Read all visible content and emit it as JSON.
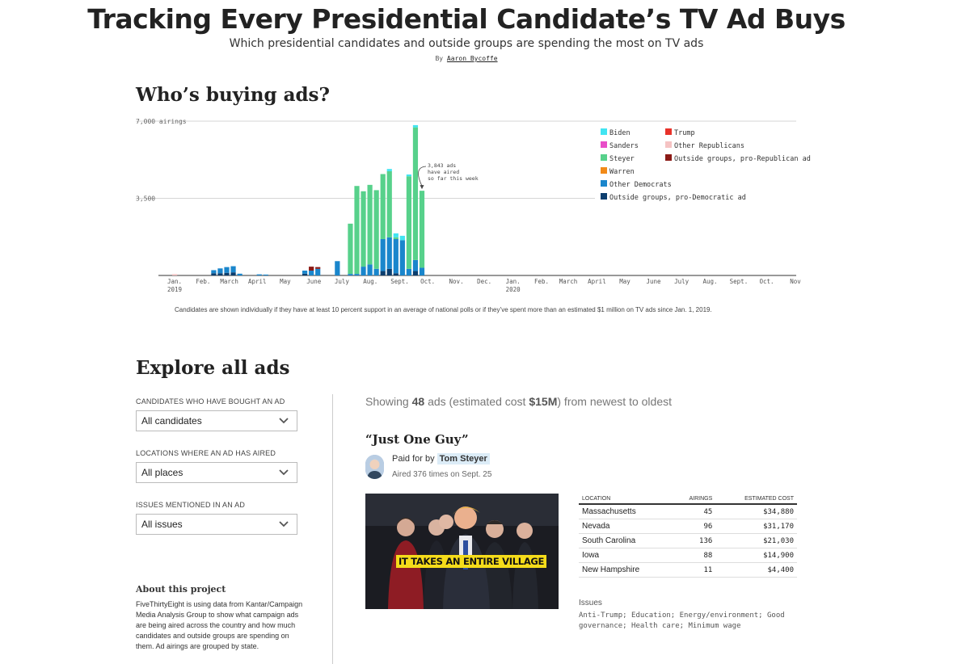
{
  "header": {
    "title": "Tracking Every Presidential Candidate’s TV Ad Buys",
    "subtitle": "Which presidential candidates and outside groups are spending the most on TV ads",
    "byline_prefix": "By",
    "author": "Aaron Bycoffe"
  },
  "chart_section": {
    "heading": "Who’s buying ads?",
    "footnote": "Candidates are shown individually if they have at least 10 percent support in an average of national polls or if they’ve spent more than an estimated $1 million on TV ads since Jan. 1, 2019."
  },
  "chart_data": {
    "type": "bar",
    "stacked": true,
    "title": "Who’s buying ads?",
    "ylabel": "airings",
    "ylim": [
      0,
      7000
    ],
    "yticks": [
      {
        "value": 3500,
        "label": "3,500"
      },
      {
        "value": 7000,
        "label": "7,000 airings"
      }
    ],
    "xticks": [
      {
        "label": "Jan.",
        "sub": "2019",
        "week": 0
      },
      {
        "label": "Feb.",
        "week": 4.4
      },
      {
        "label": "March",
        "week": 8.4
      },
      {
        "label": "April",
        "week": 12.7
      },
      {
        "label": "May",
        "week": 17
      },
      {
        "label": "June",
        "week": 21.4
      },
      {
        "label": "July",
        "week": 25.7
      },
      {
        "label": "Aug.",
        "week": 30.1
      },
      {
        "label": "Sept.",
        "week": 34.6
      },
      {
        "label": "Oct.",
        "week": 38.9
      },
      {
        "label": "Nov.",
        "week": 43.3
      },
      {
        "label": "Dec.",
        "week": 47.6
      },
      {
        "label": "Jan.",
        "sub": "2020",
        "week": 52
      },
      {
        "label": "Feb.",
        "week": 56.4
      },
      {
        "label": "March",
        "week": 60.5
      },
      {
        "label": "April",
        "week": 64.9
      },
      {
        "label": "May",
        "week": 69.2
      },
      {
        "label": "June",
        "week": 73.6
      },
      {
        "label": "July",
        "week": 77.9
      },
      {
        "label": "Aug.",
        "week": 82.3
      },
      {
        "label": "Sept.",
        "week": 86.7
      },
      {
        "label": "Oct.",
        "week": 91
      },
      {
        "label": "Nov",
        "week": 95.4
      }
    ],
    "x_range_weeks": [
      0,
      96
    ],
    "series": [
      {
        "name": "Biden",
        "color": "#41e4f2"
      },
      {
        "name": "Sanders",
        "color": "#e84ec8"
      },
      {
        "name": "Steyer",
        "color": "#57d18b"
      },
      {
        "name": "Warren",
        "color": "#f28a18"
      },
      {
        "name": "Other Democrats",
        "color": "#1a86cc"
      },
      {
        "name": "Outside groups, pro-Democratic ad",
        "color": "#0c3e6e"
      },
      {
        "name": "Trump",
        "color": "#e8322a"
      },
      {
        "name": "Other Republicans",
        "color": "#f5c3c3"
      },
      {
        "name": "Outside groups, pro-Republican ad",
        "color": "#8b1a16"
      }
    ],
    "bars": [
      {
        "week": 0,
        "segments": {
          "Other Republicans": 60
        }
      },
      {
        "week": 6,
        "segments": {
          "Other Democrats": 140,
          "Outside groups, pro-Democratic ad": 100
        }
      },
      {
        "week": 7,
        "segments": {
          "Other Democrats": 220,
          "Outside groups, pro-Democratic ad": 100
        }
      },
      {
        "week": 8,
        "segments": {
          "Other Democrats": 260,
          "Outside groups, pro-Democratic ad": 120
        }
      },
      {
        "week": 9,
        "segments": {
          "Other Democrats": 280,
          "Outside groups, pro-Democratic ad": 140
        }
      },
      {
        "week": 10,
        "segments": {
          "Other Democrats": 80
        }
      },
      {
        "week": 13,
        "segments": {
          "Other Democrats": 50
        }
      },
      {
        "week": 14,
        "segments": {
          "Other Democrats": 40
        }
      },
      {
        "week": 20,
        "segments": {
          "Other Democrats": 140,
          "Outside groups, pro-Democratic ad": 80
        }
      },
      {
        "week": 21,
        "segments": {
          "Other Democrats": 220,
          "Outside groups, pro-Republican ad": 180
        }
      },
      {
        "week": 22,
        "segments": {
          "Other Democrats": 300,
          "Outside groups, pro-Republican ad": 80
        }
      },
      {
        "week": 25,
        "segments": {
          "Other Democrats": 650
        }
      },
      {
        "week": 27,
        "segments": {
          "Other Democrats": 70,
          "Steyer": 2280
        }
      },
      {
        "week": 28,
        "segments": {
          "Other Democrats": 70,
          "Steyer": 3990
        }
      },
      {
        "week": 29,
        "segments": {
          "Other Democrats": 400,
          "Steyer": 3420
        }
      },
      {
        "week": 30,
        "segments": {
          "Other Democrats": 500,
          "Steyer": 3610
        }
      },
      {
        "week": 31,
        "segments": {
          "Other Democrats": 300,
          "Steyer": 3570
        }
      },
      {
        "week": 32,
        "segments": {
          "Outside groups, pro-Democratic ad": 200,
          "Other Democrats": 1450,
          "Steyer": 2950
        }
      },
      {
        "week": 33,
        "segments": {
          "Outside groups, pro-Democratic ad": 300,
          "Other Democrats": 1430,
          "Steyer": 3000,
          "Biden": 100
        }
      },
      {
        "week": 34,
        "segments": {
          "Outside groups, pro-Democratic ad": 100,
          "Other Democrats": 1550,
          "Steyer": 80,
          "Biden": 180
        }
      },
      {
        "week": 35,
        "segments": {
          "Other Democrats": 1600,
          "Biden": 200
        }
      },
      {
        "week": 36,
        "segments": {
          "Other Democrats": 300,
          "Steyer": 4200,
          "Biden": 80
        }
      },
      {
        "week": 37,
        "segments": {
          "Outside groups, pro-Democratic ad": 200,
          "Other Democrats": 500,
          "Steyer": 6020,
          "Biden": 100
        }
      },
      {
        "week": 38,
        "segments": {
          "Other Democrats": 350,
          "Steyer": 3493
        }
      }
    ],
    "annotation": {
      "text_lines": [
        "3,843 ads",
        "have aired",
        "so far this week"
      ],
      "week": 38,
      "value": 3843
    }
  },
  "explore": {
    "heading": "Explore all ads",
    "filters": [
      {
        "label": "CANDIDATES WHO HAVE BOUGHT AN AD",
        "value": "All candidates"
      },
      {
        "label": "LOCATIONS WHERE AN AD HAS AIRED",
        "value": "All places"
      },
      {
        "label": "ISSUES MENTIONED IN AN AD",
        "value": "All issues"
      }
    ],
    "about_title": "About this project",
    "about_body": "FiveThirtyEight is using data from Kantar/Campaign Media Analysis Group to show what campaign ads are being aired across the country and how much candidates and outside groups are spending on them. Ad airings are grouped by state.",
    "showing_prefix": "Showing",
    "ad_count": "48",
    "showing_mid": "ads (estimated cost",
    "est_cost": "$15M",
    "showing_suffix": ") from newest to oldest"
  },
  "ad": {
    "title": "“Just One Guy”",
    "paid_for_prefix": "Paid for by",
    "sponsor": "Tom Steyer",
    "aired_line": "Aired 376 times on Sept. 25",
    "video_caption": "IT TAKES AN ENTIRE VILLAGE",
    "table": {
      "headers": [
        "LOCATION",
        "AIRINGS",
        "ESTIMATED COST"
      ],
      "rows": [
        {
          "location": "Massachusetts",
          "airings": "45",
          "cost": "$34,880"
        },
        {
          "location": "Nevada",
          "airings": "96",
          "cost": "$31,170"
        },
        {
          "location": "South Carolina",
          "airings": "136",
          "cost": "$21,030"
        },
        {
          "location": "Iowa",
          "airings": "88",
          "cost": "$14,900"
        },
        {
          "location": "New Hampshire",
          "airings": "11",
          "cost": "$4,400"
        }
      ]
    },
    "issues_label": "Issues",
    "issues": "Anti-Trump; Education; Energy/environment; Good governance; Health care; Minimum wage"
  }
}
